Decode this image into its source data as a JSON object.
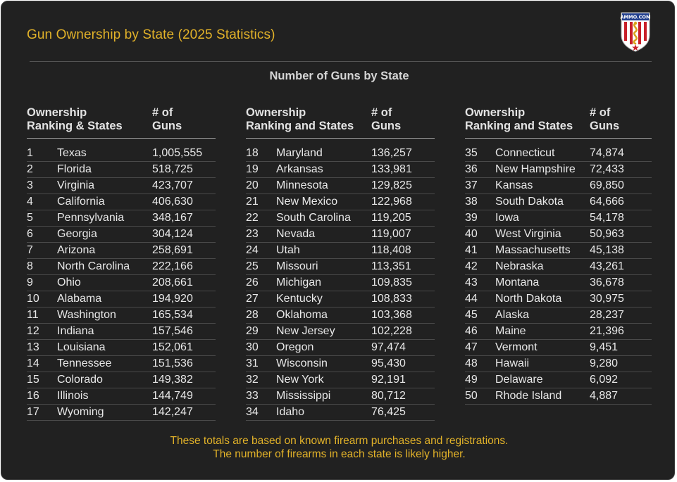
{
  "header": {
    "title": "Gun Ownership by State (2025 Statistics)",
    "logo_text": "AMMO.COM"
  },
  "table": {
    "subtitle": "Number of Guns by State",
    "columns": [
      {
        "rank_header": "Ownership\nRanking & States",
        "count_header": "# of\nGuns",
        "rows": [
          {
            "rank": "1",
            "state": "Texas",
            "guns": "1,005,555"
          },
          {
            "rank": "2",
            "state": "Florida",
            "guns": "518,725"
          },
          {
            "rank": "3",
            "state": "Virginia",
            "guns": "423,707"
          },
          {
            "rank": "4",
            "state": "California",
            "guns": "406,630"
          },
          {
            "rank": "5",
            "state": "Pennsylvania",
            "guns": "348,167"
          },
          {
            "rank": "6",
            "state": "Georgia",
            "guns": "304,124"
          },
          {
            "rank": "7",
            "state": "Arizona",
            "guns": "258,691"
          },
          {
            "rank": "8",
            "state": "North Carolina",
            "guns": "222,166"
          },
          {
            "rank": "9",
            "state": "Ohio",
            "guns": "208,661"
          },
          {
            "rank": "10",
            "state": "Alabama",
            "guns": "194,920"
          },
          {
            "rank": "11",
            "state": "Washington",
            "guns": "165,534"
          },
          {
            "rank": "12",
            "state": "Indiana",
            "guns": "157,546"
          },
          {
            "rank": "13",
            "state": "Louisiana",
            "guns": "152,061"
          },
          {
            "rank": "14",
            "state": "Tennessee",
            "guns": "151,536"
          },
          {
            "rank": "15",
            "state": "Colorado",
            "guns": "149,382"
          },
          {
            "rank": "16",
            "state": "Illinois",
            "guns": "144,749"
          },
          {
            "rank": "17",
            "state": "Wyoming",
            "guns": "142,247"
          }
        ]
      },
      {
        "rank_header": "Ownership\nRanking and States",
        "count_header": "# of\nGuns",
        "rows": [
          {
            "rank": "18",
            "state": "Maryland",
            "guns": "136,257"
          },
          {
            "rank": "19",
            "state": "Arkansas",
            "guns": "133,981"
          },
          {
            "rank": "20",
            "state": "Minnesota",
            "guns": "129,825"
          },
          {
            "rank": "21",
            "state": "New Mexico",
            "guns": "122,968"
          },
          {
            "rank": "22",
            "state": "South Carolina",
            "guns": "119,205"
          },
          {
            "rank": "23",
            "state": "Nevada",
            "guns": "119,007"
          },
          {
            "rank": "24",
            "state": "Utah",
            "guns": "118,408"
          },
          {
            "rank": "25",
            "state": "Missouri",
            "guns": "113,351"
          },
          {
            "rank": "26",
            "state": "Michigan",
            "guns": "109,835"
          },
          {
            "rank": "27",
            "state": "Kentucky",
            "guns": "108,833"
          },
          {
            "rank": "28",
            "state": "Oklahoma",
            "guns": "103,368"
          },
          {
            "rank": "29",
            "state": "New Jersey",
            "guns": "102,228"
          },
          {
            "rank": "30",
            "state": "Oregon",
            "guns": "97,474"
          },
          {
            "rank": "31",
            "state": "Wisconsin",
            "guns": "95,430"
          },
          {
            "rank": "32",
            "state": "New York",
            "guns": "92,191"
          },
          {
            "rank": "33",
            "state": "Mississippi",
            "guns": "80,712"
          },
          {
            "rank": "34",
            "state": "Idaho",
            "guns": "76,425"
          }
        ]
      },
      {
        "rank_header": "Ownership\nRanking and States",
        "count_header": "# of\nGuns",
        "rows": [
          {
            "rank": "35",
            "state": "Connecticut",
            "guns": "74,874"
          },
          {
            "rank": "36",
            "state": "New Hampshire",
            "guns": "72,433"
          },
          {
            "rank": "37",
            "state": "Kansas",
            "guns": "69,850"
          },
          {
            "rank": "38",
            "state": "South Dakota",
            "guns": "64,666"
          },
          {
            "rank": "39",
            "state": "Iowa",
            "guns": "54,178"
          },
          {
            "rank": "40",
            "state": "West Virginia",
            "guns": "50,963"
          },
          {
            "rank": "41",
            "state": "Massachusetts",
            "guns": "45,138"
          },
          {
            "rank": "42",
            "state": "Nebraska",
            "guns": "43,261"
          },
          {
            "rank": "43",
            "state": "Montana",
            "guns": "36,678"
          },
          {
            "rank": "44",
            "state": "North Dakota",
            "guns": "30,975"
          },
          {
            "rank": "45",
            "state": "Alaska",
            "guns": "28,237"
          },
          {
            "rank": "46",
            "state": "Maine",
            "guns": "21,396"
          },
          {
            "rank": "47",
            "state": "Vermont",
            "guns": "9,451"
          },
          {
            "rank": "48",
            "state": "Hawaii",
            "guns": "9,280"
          },
          {
            "rank": "49",
            "state": "Delaware",
            "guns": "6,092"
          },
          {
            "rank": "50",
            "state": "Rhode Island",
            "guns": "4,887"
          }
        ]
      }
    ]
  },
  "footnote": {
    "line1": "These totals are based on known firearm purchases and registrations.",
    "line2": "The number of firearms in each state is likely higher."
  },
  "colors": {
    "background": "#212121",
    "accent": "#e2b229",
    "text": "#e8e8e8"
  }
}
